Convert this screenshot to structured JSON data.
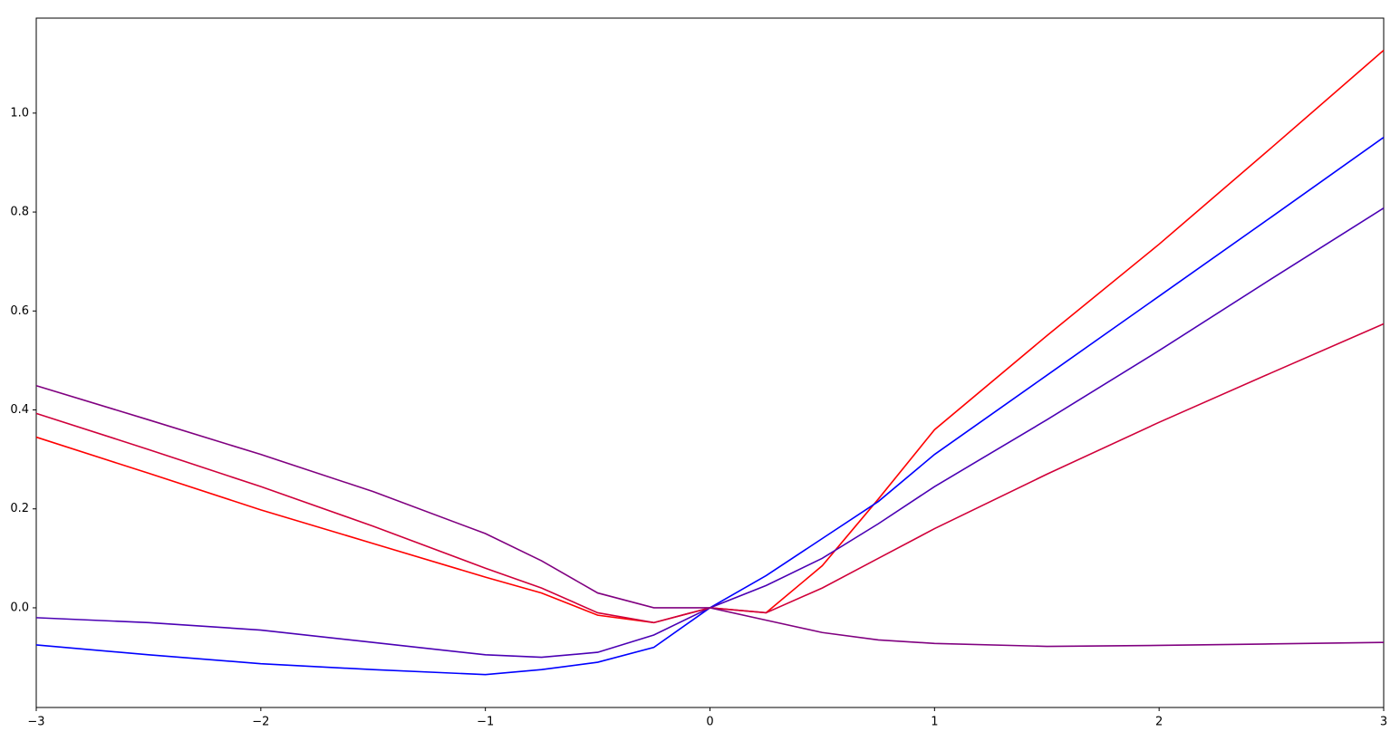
{
  "chart_data": {
    "type": "line",
    "x": [
      -3,
      -2.5,
      -2,
      -1.5,
      -1,
      -0.75,
      -0.5,
      -0.25,
      0,
      0.25,
      0.5,
      0.75,
      1,
      1.5,
      2,
      2.5,
      3
    ],
    "series": [
      {
        "color": "#ff0000",
        "values": [
          0.345,
          0.272,
          0.198,
          0.13,
          0.062,
          0.03,
          -0.015,
          -0.03,
          0,
          -0.01,
          0.085,
          0.22,
          0.36,
          0.55,
          0.735,
          0.93,
          1.127
        ]
      },
      {
        "color": "#0000ff",
        "values": [
          -0.075,
          -0.095,
          -0.113,
          -0.125,
          -0.135,
          -0.125,
          -0.11,
          -0.08,
          0,
          0.065,
          0.14,
          0.215,
          0.31,
          0.47,
          0.63,
          0.79,
          0.951
        ]
      },
      {
        "color": "#4b00b4",
        "values": [
          -0.02,
          -0.03,
          -0.045,
          -0.07,
          -0.095,
          -0.1,
          -0.09,
          -0.055,
          0,
          0.045,
          0.1,
          0.17,
          0.245,
          0.38,
          0.52,
          0.665,
          0.808
        ]
      },
      {
        "color": "#d0003a",
        "values": [
          0.393,
          0.32,
          0.245,
          0.165,
          0.08,
          0.04,
          -0.01,
          -0.03,
          0,
          -0.01,
          0.04,
          0.1,
          0.16,
          0.27,
          0.375,
          0.475,
          0.574
        ]
      },
      {
        "color": "#800080",
        "values": [
          0.449,
          0.38,
          0.31,
          0.235,
          0.15,
          0.095,
          0.03,
          0.0,
          0,
          -0.025,
          -0.05,
          -0.065,
          -0.072,
          -0.078,
          -0.076,
          -0.073,
          -0.07
        ]
      }
    ],
    "xlim": [
      -3,
      3
    ],
    "ylim": [
      -0.2015,
      1.192
    ],
    "xticks": [
      {
        "value": -3,
        "label": "−3"
      },
      {
        "value": -2,
        "label": "−2"
      },
      {
        "value": -1,
        "label": "−1"
      },
      0,
      1,
      2,
      3
    ],
    "yticks": [
      {
        "value": 0,
        "label": "0.0"
      },
      0.2,
      0.4,
      0.6,
      0.8,
      {
        "value": 1,
        "label": "1.0"
      }
    ]
  }
}
